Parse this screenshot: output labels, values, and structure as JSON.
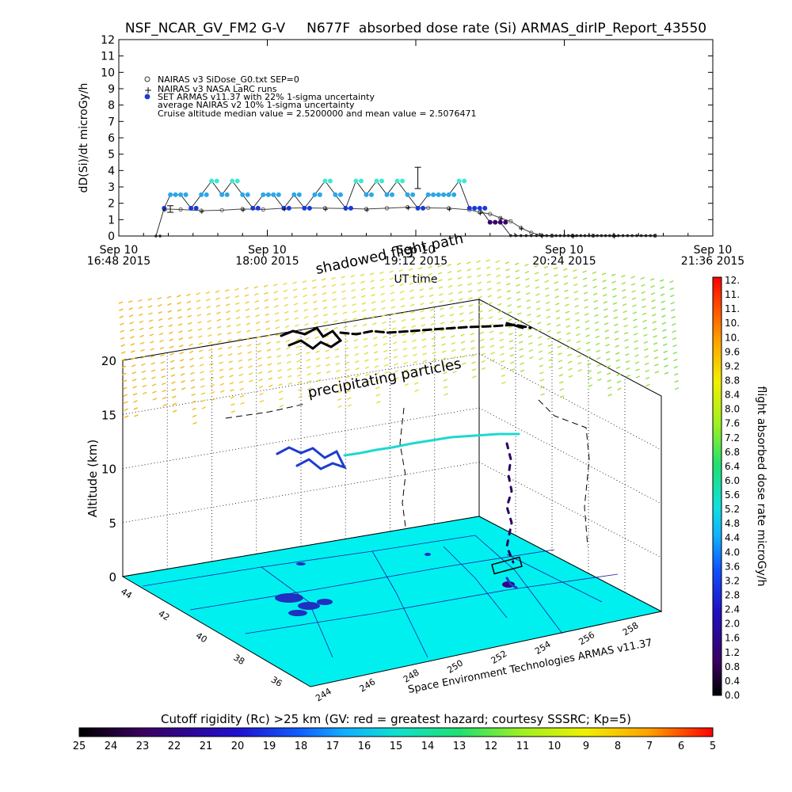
{
  "header": {
    "title": "NSF_NCAR_GV_FM2 G-V     N677F  absorbed dose rate (Si) ARMAS_dirIP_Report_43550"
  },
  "colors": {
    "model_series": "#444444",
    "nasa_series": "#000000",
    "armas_series": "#1a3ad8",
    "hi_series": "#3ee8d0",
    "mid_series": "#2aa8e8",
    "ground": "#00f0f0",
    "land_lines": "#1c20a0"
  },
  "chart_data": [
    {
      "type": "scatter",
      "title": "NSF_NCAR_GV_FM2 G-V     N677F  absorbed dose rate (Si) ARMAS_dirIP_Report_43550",
      "ylabel": "dD(Si)/dt microGy/h",
      "xlabel": "UT time",
      "ylim": [
        0,
        12
      ],
      "yticks": [
        "0",
        "1",
        "2",
        "3",
        "4",
        "5",
        "6",
        "7",
        "8",
        "9",
        "10",
        "11",
        "12"
      ],
      "xticks": [
        {
          "top": "Sep 10",
          "bottom": "16:48 2015",
          "t": 0
        },
        {
          "top": "Sep 10",
          "bottom": "18:00 2015",
          "t": 72
        },
        {
          "top": "Sep 10",
          "bottom": "19:12 2015",
          "t": 144
        },
        {
          "top": "Sep 10",
          "bottom": "20:24 2015",
          "t": 216
        },
        {
          "top": "Sep 10",
          "bottom": "21:36 2015",
          "t": 288
        }
      ],
      "xlim_minutes": [
        0,
        288
      ],
      "legend": [
        "NAIRAS v3 SiDose_G0.txt SEP=0",
        "NAIRAS v3 NASA LaRC runs",
        "SET ARMAS v11.37 with 22% 1-sigma uncertainty",
        "average NAIRAS v2 10% 1-sigma uncertainty",
        "Cruise altitude median value = 2.5200000 and mean value = 2.5076471"
      ],
      "legend_position": "top-left",
      "series": [
        {
          "name": "NAIRAS v3 SiDose_G0.txt SEP=0",
          "x": [
            22,
            30,
            40,
            50,
            60,
            70,
            80,
            90,
            100,
            110,
            120,
            130,
            140,
            150,
            160,
            170,
            175,
            180,
            185,
            190,
            195,
            200,
            205,
            210,
            220,
            230,
            240,
            260
          ],
          "y": [
            1.65,
            1.62,
            1.55,
            1.58,
            1.65,
            1.62,
            1.7,
            1.72,
            1.7,
            1.68,
            1.65,
            1.7,
            1.76,
            1.72,
            1.7,
            1.6,
            1.45,
            1.35,
            1.1,
            0.9,
            0.5,
            0.2,
            0.05,
            0.02,
            0.02,
            0.02,
            0.02,
            0.02
          ]
        },
        {
          "name": "SET ARMAS v11.37 with 22% 1-sigma uncertainty",
          "x": [
            18,
            22,
            25,
            30,
            35,
            40,
            45,
            50,
            55,
            60,
            65,
            70,
            75,
            80,
            85,
            90,
            95,
            100,
            105,
            110,
            115,
            120,
            125,
            130,
            135,
            140,
            145,
            150,
            155,
            160,
            165,
            170,
            175,
            180,
            185,
            190,
            195,
            200,
            205,
            210,
            220,
            230,
            240,
            260
          ],
          "y": [
            0,
            1.7,
            2.52,
            2.52,
            1.7,
            2.52,
            3.36,
            2.52,
            3.36,
            2.52,
            1.7,
            2.52,
            2.52,
            1.7,
            2.52,
            1.7,
            2.52,
            3.36,
            2.52,
            1.7,
            3.36,
            2.52,
            3.36,
            2.52,
            3.36,
            2.52,
            1.7,
            2.52,
            2.52,
            2.52,
            3.36,
            1.7,
            1.7,
            0.84,
            0.84,
            0.02,
            0.02,
            0.02,
            0.02,
            0.02,
            0.02,
            0.02,
            0.02,
            0.02
          ]
        }
      ],
      "error_bars": [
        {
          "x": 25,
          "y": 1.65,
          "low": 1.45,
          "high": 1.85
        },
        {
          "x": 145,
          "y": 3.5,
          "low": 2.9,
          "high": 4.2
        }
      ]
    },
    {
      "type": "3d-trajectory",
      "zlabel": "Altitude (km)",
      "zticks": [
        "0",
        "5",
        "10",
        "15",
        "20"
      ],
      "zlim": [
        0,
        20
      ],
      "lat_ticks": [
        "44",
        "42",
        "40",
        "38",
        "36"
      ],
      "lon_ticks": [
        "244",
        "246",
        "248",
        "250",
        "252",
        "254",
        "256",
        "258"
      ],
      "annotations": [
        "shadowed flight path",
        "precipitating particles"
      ],
      "credit": "Space Environment Technologies ARMAS v11.37",
      "colorbar_label": "flight absorbed dose rate microGy/h",
      "colorbar_ticks": [
        "12.",
        "11.",
        "11.",
        "10.",
        "10.",
        "9.6",
        "9.2",
        "8.8",
        "8.4",
        "8.0",
        "7.6",
        "7.2",
        "6.8",
        "6.4",
        "6.0",
        "5.6",
        "5.2",
        "4.8",
        "4.4",
        "4.0",
        "3.6",
        "3.2",
        "2.8",
        "2.4",
        "2.0",
        "1.6",
        "1.2",
        "0.8",
        "0.4",
        "0.0"
      ],
      "bottom_bar_title": "Cutoff rigidity (Rc) >25 km (GV: red = greatest hazard; courtesy SSSRC; Kp=5)",
      "bottom_bar_ticks": [
        "25",
        "24",
        "23",
        "22",
        "21",
        "20",
        "19",
        "18",
        "17",
        "16",
        "15",
        "14",
        "13",
        "12",
        "11",
        "10",
        "9",
        "8",
        "7",
        "6",
        "5"
      ]
    }
  ]
}
